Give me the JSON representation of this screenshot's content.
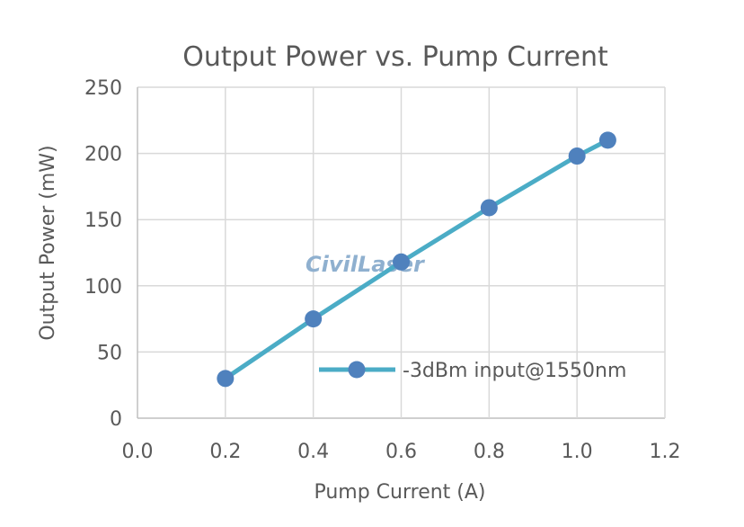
{
  "chart_data": {
    "type": "line",
    "title": "Output Power vs. Pump Current",
    "xlabel": "Pump Current (A)",
    "ylabel": "Output Power (mW)",
    "xlim": [
      0.0,
      1.2
    ],
    "ylim": [
      0,
      250
    ],
    "x_ticks": [
      "0.0",
      "0.2",
      "0.4",
      "0.6",
      "0.8",
      "1.0",
      "1.2"
    ],
    "y_ticks": [
      "0",
      "50",
      "100",
      "150",
      "200",
      "250"
    ],
    "grid": true,
    "legend_position": "bottom-right",
    "series": [
      {
        "name": "-3dBm input@1550nm",
        "line_color": "#4bacc6",
        "marker_color": "#4f81bd",
        "x": [
          0.2,
          0.4,
          0.6,
          0.8,
          1.0,
          1.07
        ],
        "y": [
          30,
          75,
          118,
          159,
          198,
          210
        ]
      }
    ]
  },
  "watermark": "CivilLaser"
}
